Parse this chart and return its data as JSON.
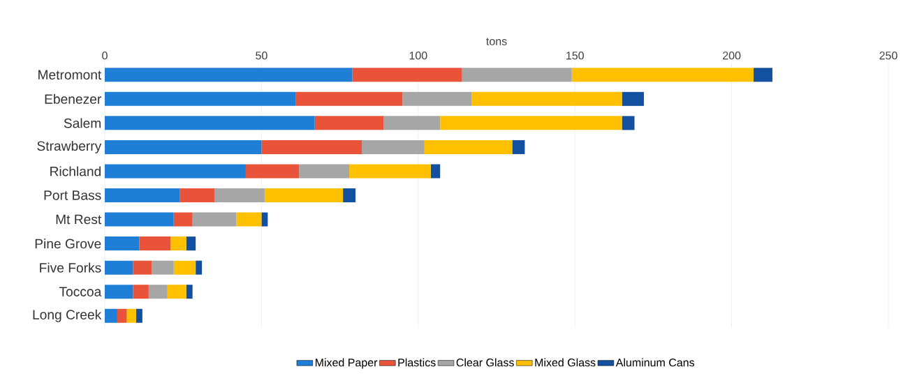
{
  "chart_data": {
    "type": "bar",
    "orientation": "horizontal",
    "stacked": true,
    "xlabel": "tons",
    "categories": [
      "Metromont",
      "Ebenezer",
      "Salem",
      "Strawberry",
      "Richland",
      "Port Bass",
      "Mt Rest",
      "Pine Grove",
      "Five Forks",
      "Toccoa",
      "Long Creek"
    ],
    "series": [
      {
        "name": "Mixed Paper",
        "color": "#1f7fd6",
        "values": [
          79,
          61,
          67,
          50,
          45,
          24,
          22,
          11,
          9,
          9,
          4
        ]
      },
      {
        "name": "Plastics",
        "color": "#e8533a",
        "values": [
          35,
          34,
          22,
          32,
          17,
          11,
          6,
          10,
          6,
          5,
          3
        ]
      },
      {
        "name": "Clear Glass",
        "color": "#a6a6a6",
        "values": [
          35,
          22,
          18,
          20,
          16,
          16,
          14,
          0,
          7,
          6,
          0
        ]
      },
      {
        "name": "Mixed Glass",
        "color": "#ffc000",
        "values": [
          58,
          48,
          58,
          28,
          26,
          25,
          8,
          5,
          7,
          6,
          3
        ]
      },
      {
        "name": "Aluminum Cans",
        "color": "#1450a0",
        "values": [
          6,
          7,
          4,
          4,
          3,
          4,
          2,
          3,
          2,
          2,
          2
        ]
      }
    ],
    "xlim": [
      0,
      250
    ],
    "xticks": [
      0,
      50,
      100,
      150,
      200,
      250
    ],
    "grid": "x",
    "legend": "bottom"
  }
}
